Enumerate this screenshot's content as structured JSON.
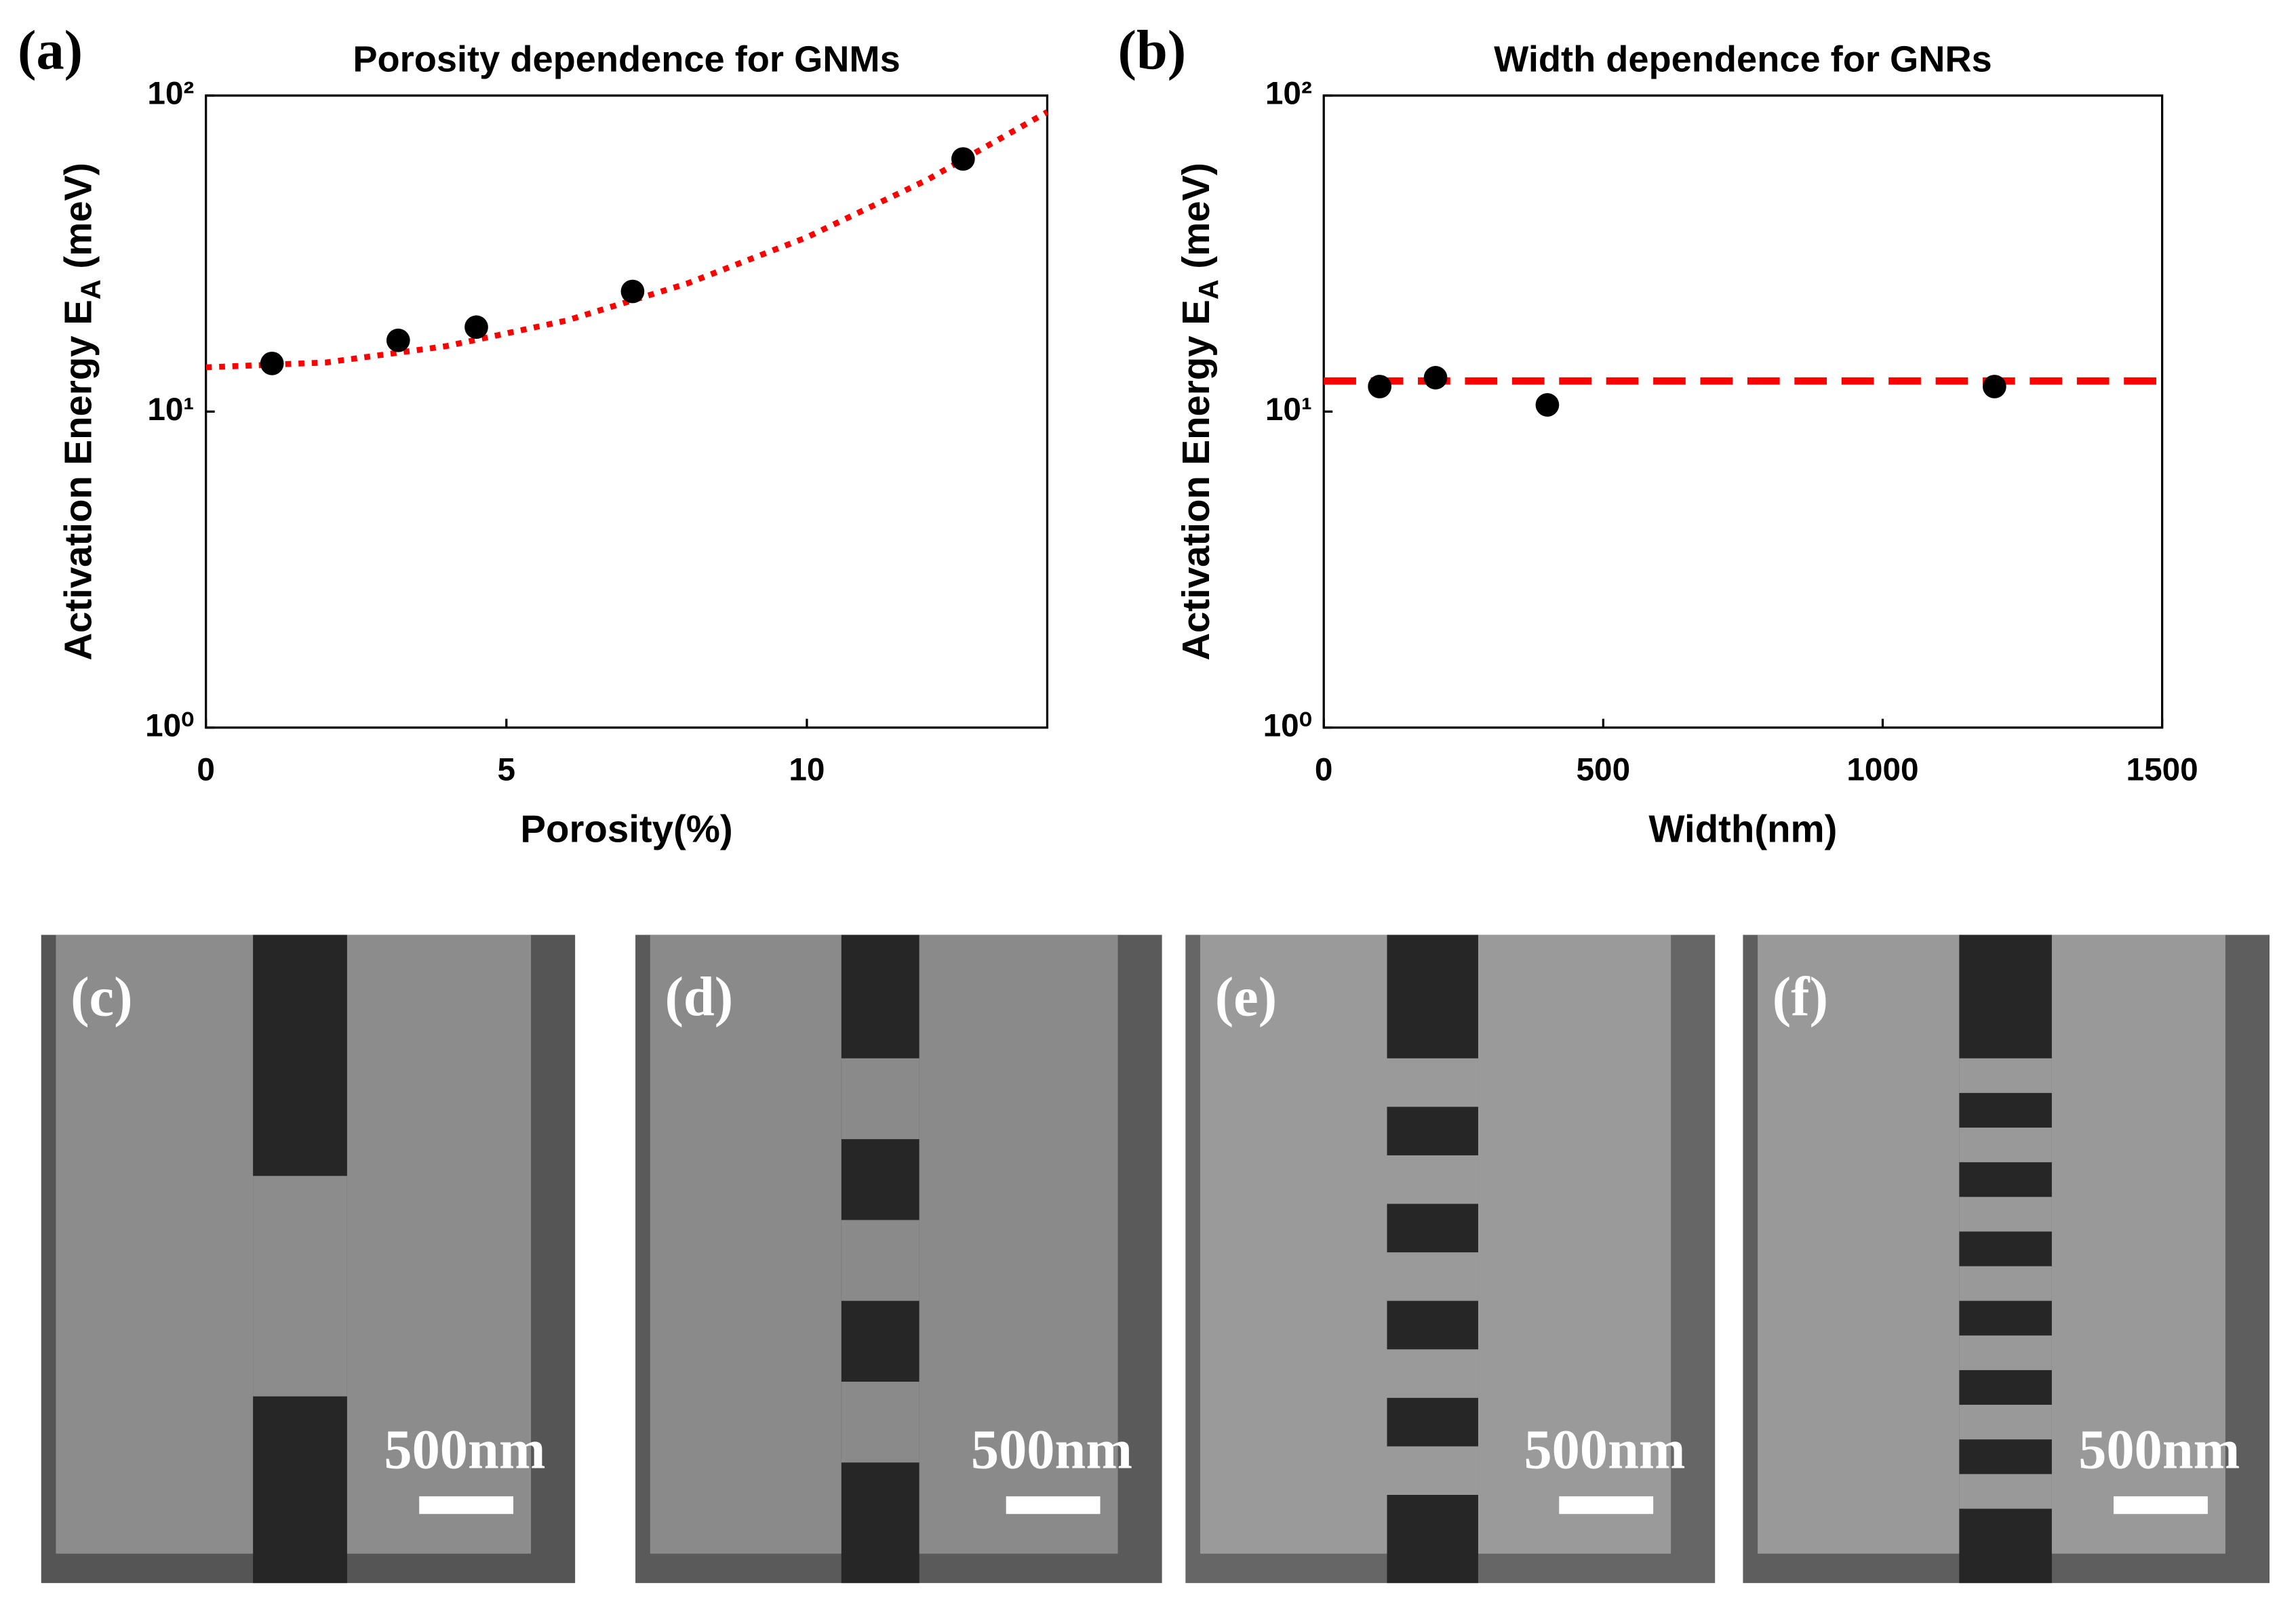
{
  "chart_data": [
    {
      "type": "scatter",
      "panel_label": "(a)",
      "title": "Porosity dependence for GNMs",
      "xlabel": "Porosity(%)",
      "ylabel": {
        "text": "Activation Energy E",
        "sub": "A",
        "tail": " (meV)"
      },
      "log_y": true,
      "xlim": [
        0,
        14
      ],
      "xticks": [
        0,
        5,
        10
      ],
      "ylim": [
        1,
        100
      ],
      "yticks": [
        {
          "value": 1,
          "label": "10⁰"
        },
        {
          "value": 10,
          "label": "10¹"
        },
        {
          "value": 100,
          "label": "10²"
        }
      ],
      "points": {
        "x": [
          1.1,
          3.2,
          4.5,
          7.1,
          12.6
        ],
        "y": [
          14.2,
          16.8,
          18.5,
          24,
          63
        ],
        "color": "#000000"
      },
      "fit": {
        "x": [
          0,
          2,
          4,
          6,
          8,
          10,
          12,
          14
        ],
        "y": [
          13.8,
          14.3,
          16.1,
          19.4,
          25.4,
          35.6,
          54.1,
          88.7
        ],
        "color": "#ff0000",
        "style": "dotted"
      }
    },
    {
      "type": "scatter",
      "panel_label": "(b)",
      "title": "Width dependence for GNRs",
      "xlabel": "Width(nm)",
      "ylabel": {
        "text": "Activation Energy E",
        "sub": "A",
        "tail": " (meV)"
      },
      "log_y": true,
      "xlim": [
        0,
        1500
      ],
      "xticks": [
        0,
        500,
        1000,
        1500
      ],
      "ylim": [
        1,
        100
      ],
      "yticks": [
        {
          "value": 1,
          "label": "10⁰"
        },
        {
          "value": 10,
          "label": "10¹"
        },
        {
          "value": 100,
          "label": "10²"
        }
      ],
      "points": {
        "x": [
          100,
          200,
          400,
          1200
        ],
        "y": [
          12,
          12.8,
          10.5,
          12
        ],
        "color": "#000000"
      },
      "fit": {
        "x": [
          0,
          1500
        ],
        "y": [
          12.5,
          12.5
        ],
        "color": "#ff0000",
        "style": "dashed"
      }
    }
  ],
  "images": [
    {
      "label": "(c)",
      "scale_bar": "500nm"
    },
    {
      "label": "(d)",
      "scale_bar": "500nm"
    },
    {
      "label": "(e)",
      "scale_bar": "500nm"
    },
    {
      "label": "(f)",
      "scale_bar": "500nm"
    }
  ]
}
